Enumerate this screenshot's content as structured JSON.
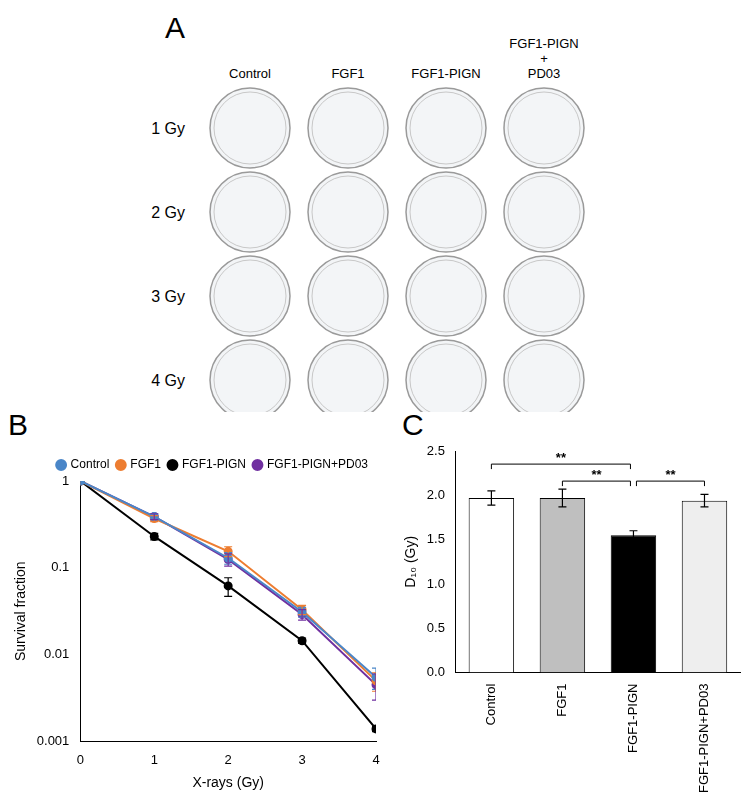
{
  "photo_panel": {
    "panel": "A",
    "columns": [
      "Control",
      "FGF1",
      "FGF1-PIGN",
      "FGF1-PIGN + PD03"
    ],
    "rows": [
      "1 Gy",
      "2 Gy",
      "3 Gy",
      "4 Gy"
    ]
  },
  "chart_data": [
    {
      "panel": "B",
      "type": "line",
      "x_label": "X-rays (Gy)",
      "y_label": "Survival fraction",
      "x": [
        0,
        1,
        2,
        3,
        4
      ],
      "xlim": [
        0,
        4
      ],
      "xticks": [
        0,
        1,
        2,
        3,
        4
      ],
      "log": "y",
      "ylim": [
        0.001,
        1
      ],
      "yticks": [
        0.001,
        0.01,
        0.1,
        1
      ],
      "grid": false,
      "legend": "upper right",
      "marker": "circle",
      "series": [
        {
          "name": "Control",
          "color": "#4a86c8",
          "values": [
            1,
            0.39,
            0.13,
            0.031,
            0.0055
          ],
          "errors": [
            0,
            0.03,
            0.02,
            0.004,
            0.0015
          ]
        },
        {
          "name": "FGF1",
          "color": "#ed7d31",
          "values": [
            1,
            0.37,
            0.155,
            0.033,
            0.005
          ],
          "errors": [
            0,
            0.03,
            0.02,
            0.004,
            0.0012
          ]
        },
        {
          "name": "FGF1-PIGN",
          "color": "#000000",
          "values": [
            1,
            0.23,
            0.062,
            0.0145,
            0.0014
          ],
          "errors": [
            0,
            0.02,
            0.015,
            0.001,
            0.0001
          ]
        },
        {
          "name": "FGF1-PIGN+PD03",
          "color": "#7030a0",
          "values": [
            1,
            0.39,
            0.125,
            0.029,
            0.0045
          ],
          "errors": [
            0,
            0.03,
            0.02,
            0.004,
            0.0015
          ]
        }
      ]
    },
    {
      "panel": "C",
      "type": "bar",
      "y_label": "D₁₀ (Gy)",
      "categories": [
        "Control",
        "FGF1",
        "FGF1-PIGN",
        "FGF1-PIGN+PD03"
      ],
      "values": [
        1.97,
        1.97,
        1.55,
        1.94
      ],
      "errors": [
        0.08,
        0.1,
        0.05,
        0.07
      ],
      "colors": [
        "#ffffff",
        "#bfbfbf",
        "#000000",
        "#eeeeee"
      ],
      "ylim": [
        0,
        2.5
      ],
      "yticks": [
        {
          "value": 0,
          "label": "0.0"
        },
        0.5,
        {
          "value": 1,
          "label": "1.0"
        },
        1.5,
        {
          "value": 2,
          "label": "2.0"
        },
        2.5
      ],
      "grid": false,
      "annotations": [
        {
          "from": 0,
          "to": 2,
          "label": "**"
        },
        {
          "from": 1,
          "to": 2,
          "label": "**"
        },
        {
          "from": 2,
          "to": 3,
          "label": "**"
        }
      ]
    }
  ]
}
